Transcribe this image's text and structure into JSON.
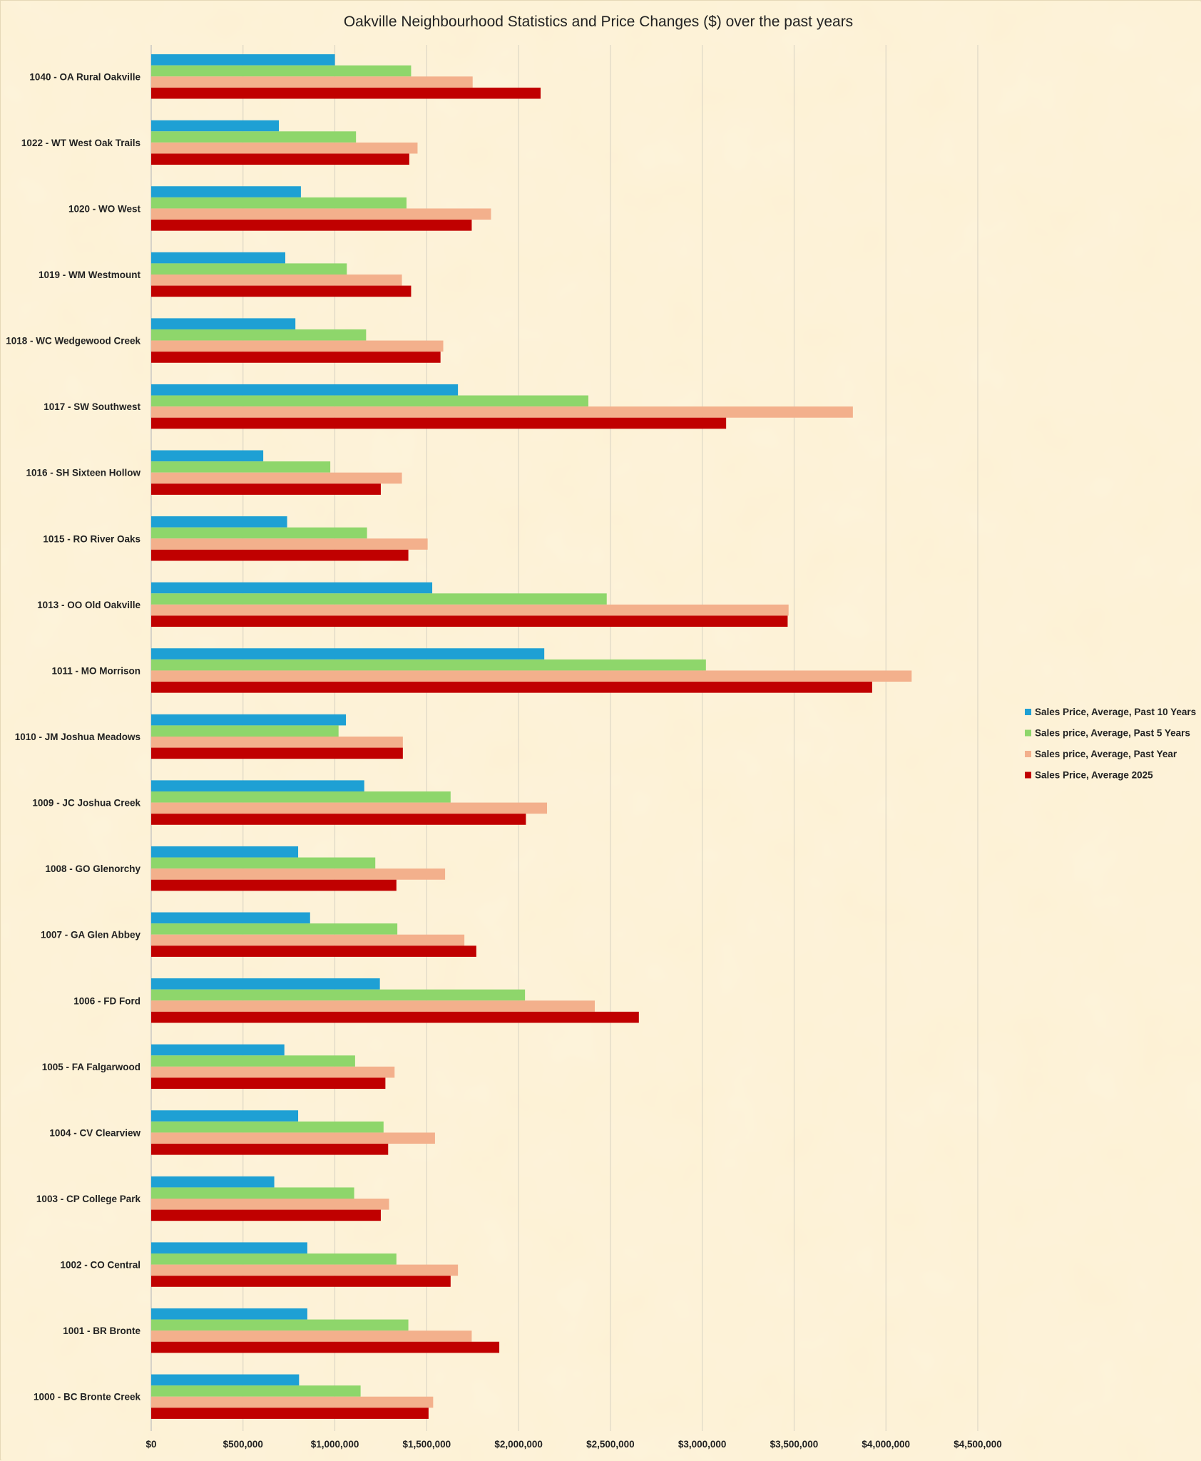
{
  "chart_data": {
    "type": "bar",
    "orientation": "horizontal",
    "title": "Oakville Neighbourhood Statistics and  Price Changes ($) over the past years",
    "xlabel": "",
    "ylabel": "",
    "xlim": [
      0,
      4500000
    ],
    "x_ticks": [
      0,
      500000,
      1000000,
      1500000,
      2000000,
      2500000,
      3000000,
      3500000,
      4000000,
      4500000
    ],
    "x_tick_labels": [
      "$0",
      "$500,000",
      "$1,000,000",
      "$1,500,000",
      "$2,000,000",
      "$2,500,000",
      "$3,000,000",
      "$3,500,000",
      "$4,000,000",
      "$4,500,000"
    ],
    "grid": true,
    "legend_position": "right",
    "categories": [
      "1040 - OA Rural Oakville",
      "1022 - WT West Oak Trails",
      "1020 - WO West",
      "1019 - WM Westmount",
      "1018 - WC Wedgewood Creek",
      "1017 - SW Southwest",
      "1016 - SH Sixteen Hollow",
      "1015 - RO River Oaks",
      "1013 - OO Old Oakville",
      "1011 - MO Morrison",
      "1010 - JM Joshua Meadows",
      "1009 - JC Joshua Creek",
      "1008 - GO Glenorchy",
      "1007 - GA Glen Abbey",
      "1006 - FD Ford",
      "1005 - FA Falgarwood",
      "1004 - CV Clearview",
      "1003 - CP College Park",
      "1002 - CO Central",
      "1001 - BR Bronte",
      "1000 - BC Bronte Creek"
    ],
    "series": [
      {
        "name": "Sales Price, Average, Past 10 Years",
        "color": "#1ea0d4",
        "values": [
          1000000,
          695000,
          815000,
          730000,
          785000,
          1670000,
          610000,
          740000,
          1530000,
          2140000,
          1060000,
          1160000,
          800000,
          865000,
          1245000,
          725000,
          800000,
          670000,
          850000,
          850000,
          805000
        ]
      },
      {
        "name": "Sales price, Average, Past 5 Years",
        "color": "#8ed66b",
        "values": [
          1415000,
          1115000,
          1390000,
          1065000,
          1170000,
          2380000,
          975000,
          1175000,
          2480000,
          3020000,
          1020000,
          1630000,
          1220000,
          1340000,
          2035000,
          1110000,
          1265000,
          1105000,
          1335000,
          1400000,
          1140000
        ]
      },
      {
        "name": "Sales price, Average, Past Year",
        "color": "#f3b08c",
        "values": [
          1750000,
          1450000,
          1850000,
          1365000,
          1590000,
          3820000,
          1365000,
          1505000,
          3470000,
          4140000,
          1370000,
          2155000,
          1600000,
          1705000,
          2415000,
          1325000,
          1545000,
          1295000,
          1670000,
          1745000,
          1535000
        ]
      },
      {
        "name": "Sales Price, Average 2025",
        "color": "#c00000",
        "values": [
          2120000,
          1405000,
          1745000,
          1415000,
          1575000,
          3130000,
          1250000,
          1400000,
          3465000,
          3925000,
          1370000,
          2040000,
          1335000,
          1770000,
          2655000,
          1275000,
          1290000,
          1250000,
          1630000,
          1895000,
          1510000
        ]
      }
    ]
  }
}
